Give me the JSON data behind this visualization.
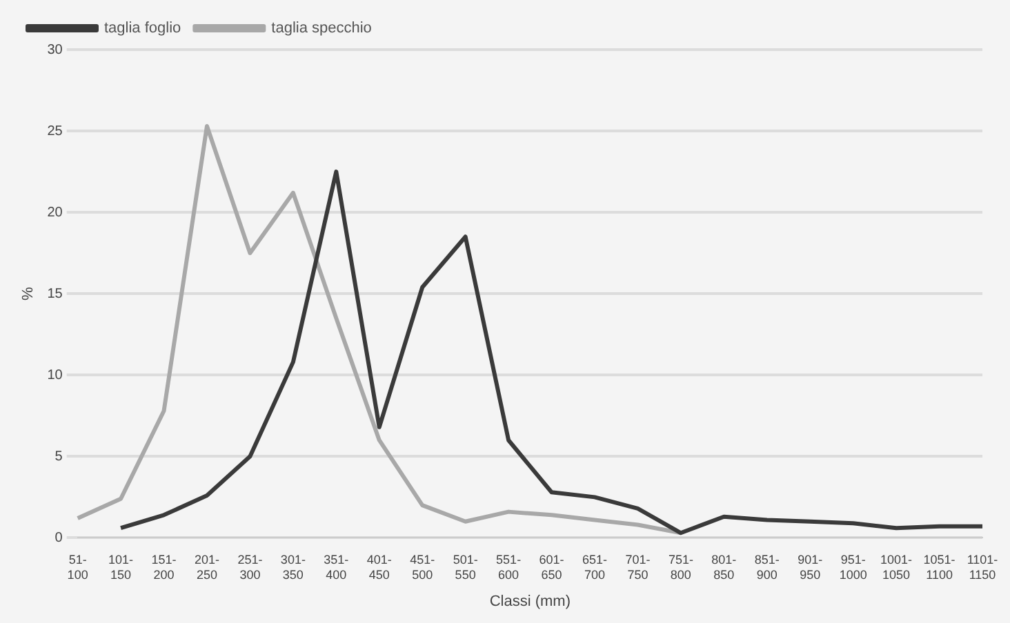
{
  "chart_data": {
    "type": "line",
    "xlabel": "Classi (mm)",
    "ylabel": "%",
    "categories": [
      "51-100",
      "101-150",
      "151-200",
      "201-250",
      "251-300",
      "301-350",
      "351-400",
      "401-450",
      "451-500",
      "501-550",
      "551-600",
      "601-650",
      "651-700",
      "701-750",
      "751-800",
      "801-850",
      "851-900",
      "901-950",
      "951-1000",
      "1001-1050",
      "1051-1100",
      "1101-1150"
    ],
    "series": [
      {
        "name": "taglia foglio",
        "color": "#3a3a3a",
        "values": [
          null,
          0.6,
          1.4,
          2.6,
          5.0,
          10.8,
          22.5,
          6.8,
          15.4,
          18.5,
          6.0,
          2.8,
          2.5,
          1.8,
          0.3,
          1.3,
          1.1,
          1.0,
          0.9,
          0.6,
          0.7,
          0.7
        ]
      },
      {
        "name": "taglia specchio",
        "color": "#a8a8a8",
        "values": [
          1.2,
          2.4,
          7.8,
          25.3,
          17.5,
          21.2,
          13.5,
          6.0,
          2.0,
          1.0,
          1.6,
          1.4,
          1.1,
          0.8,
          0.3,
          null,
          null,
          null,
          null,
          null,
          null,
          null
        ]
      }
    ],
    "ylim": [
      0,
      30
    ],
    "yticks": [
      0,
      5,
      10,
      15,
      20,
      25,
      30
    ],
    "grid": "y",
    "legend": "top left",
    "marker": "none",
    "line_style": "solid"
  }
}
